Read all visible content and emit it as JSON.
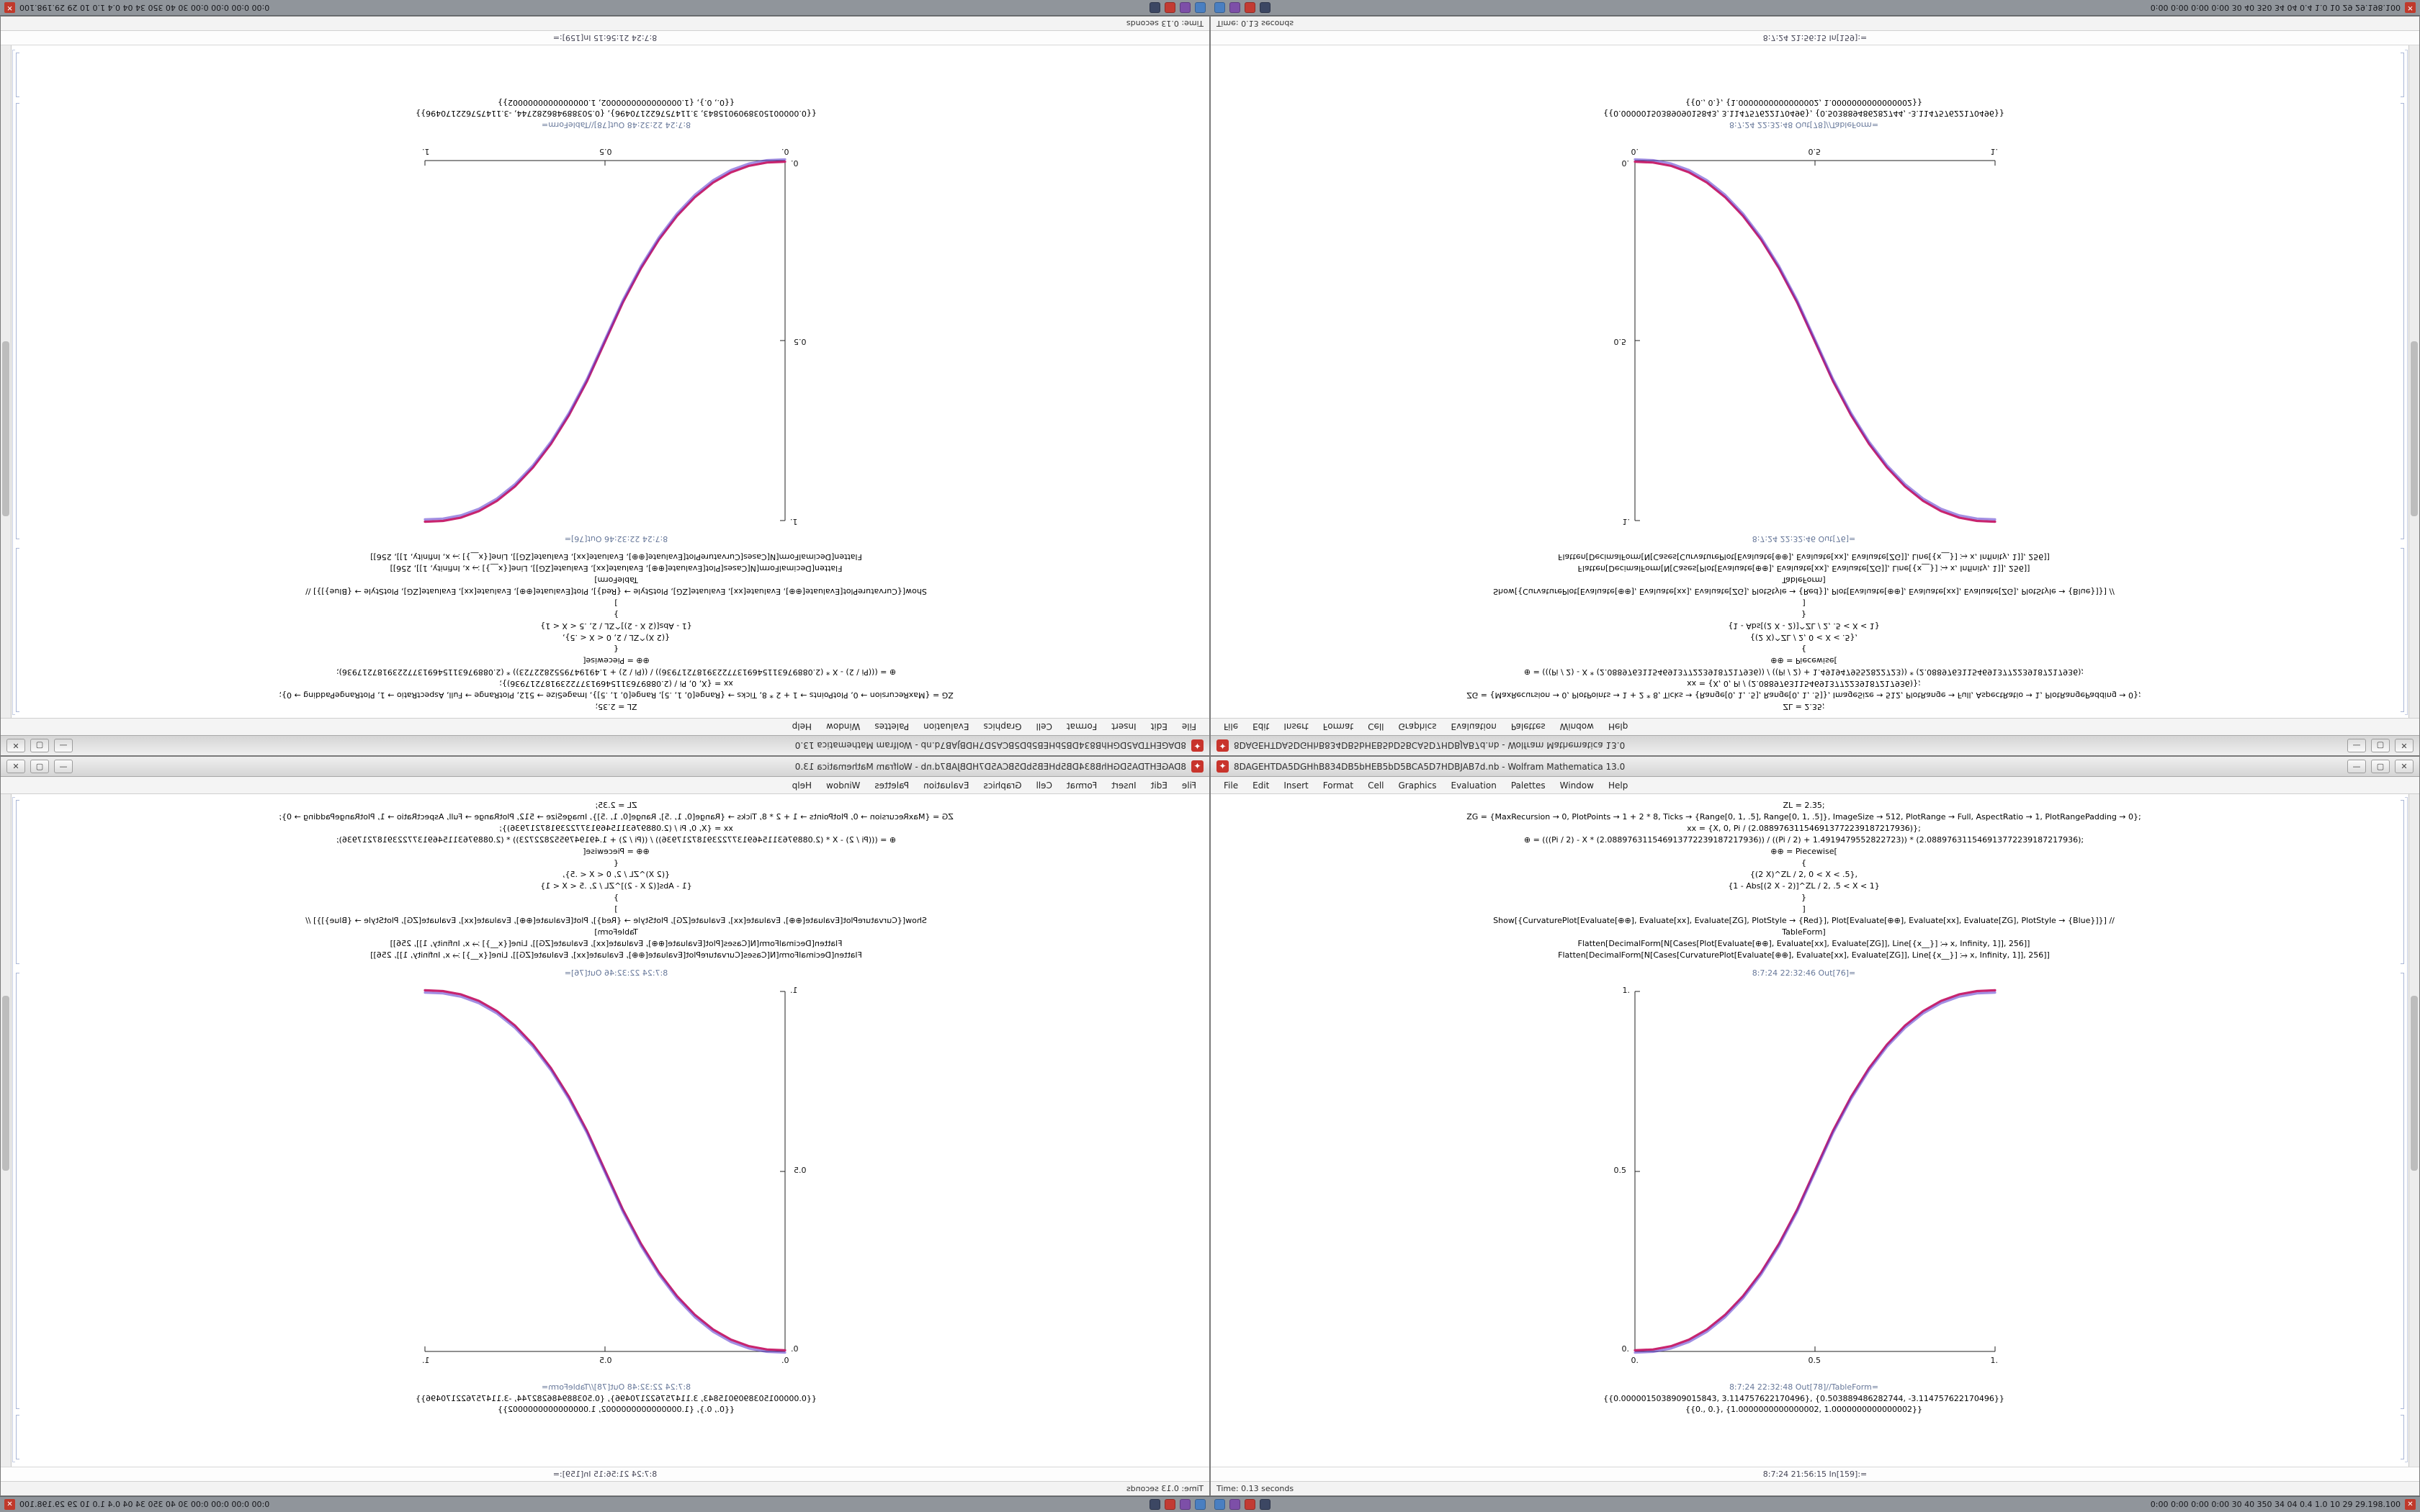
{
  "window": {
    "app_icon_glyph": "✦",
    "title": "8DAGEHTDA5DGHhB834DB5bHEB5bD5BCA5D7HDBJAB7d.nb - Wolfram Mathematica 13.0",
    "controls": {
      "minimize": "—",
      "maximize": "▢",
      "close": "✕"
    },
    "menu": [
      "File",
      "Edit",
      "Insert",
      "Format",
      "Cell",
      "Graphics",
      "Evaluation",
      "Palettes",
      "Window",
      "Help"
    ]
  },
  "notebook": {
    "code_lines": [
      "ZL = 2.35;",
      "ZG = {MaxRecursion → 0, PlotPoints → 1 + 2 * 8, Ticks → {Range[0, 1, .5], Range[0, 1, .5]}, ImageSize → 512, PlotRange → Full, AspectRatio → 1, PlotRangePadding → 0};",
      "xx = {X, 0, Pi / (2.088976311546913772239187217936)};",
      "⊕ = (((Pi / 2) - X * (2.088976311546913772239187217936)) / ((Pi / 2) + 1.4919479552822723)) * (2.088976311546913772239187217936);",
      "⊕⊕ = Piecewise[",
      "{",
      "{(2 X)^ZL / 2, 0 < X < .5},",
      "{1 - Abs[(2 X - 2)]^ZL / 2, .5 < X < 1}",
      "}",
      "]",
      "Show[{CurvaturePlot[Evaluate[⊕⊕], Evaluate[xx], Evaluate[ZG], PlotStyle → {Red}], Plot[Evaluate[⊕⊕], Evaluate[xx], Evaluate[ZG], PlotStyle → {Blue}]}] //",
      "TableForm]",
      "Flatten[DecimalForm[N[Cases[Plot[Evaluate[⊕⊕], Evaluate[xx], Evaluate[ZG]], Line[{x__}] ⧴ x, Infinity, 1]], 256]]",
      "Flatten[DecimalForm[N[Cases[CurvaturePlot[Evaluate[⊕⊕], Evaluate[xx], Evaluate[ZG]], Line[{x__}] ⧴ x, Infinity, 1]], 256]]"
    ],
    "out_plot_label": "8:7:24 22:32:46 Out[76]=",
    "out_table_label": "8:7:24 22:32:48 Out[78]//TableForm=",
    "out_values": [
      "{{0.0000015038909015843, 3.114757622170496}, {0.503889486282744, -3.114757622170496}}",
      "{{0., 0.}, {1.0000000000000002, 1.0000000000000002}}"
    ],
    "footer_in_label": "8:7:24 21:56:15 In[159]:=",
    "status_time": "Time: 0.13 seconds"
  },
  "plot": {
    "type": "line",
    "x_tick_labels": [
      "0.",
      "0.5",
      "1."
    ],
    "y_tick_labels": [
      "0.",
      "0.5",
      "1."
    ],
    "xlim": [
      0,
      1
    ],
    "ylim": [
      0,
      1
    ],
    "series": [
      {
        "name": "CurvaturePlot-Red",
        "color": "#c8246e"
      },
      {
        "name": "Plot-Blue",
        "color": "#5533cc"
      }
    ],
    "points": [
      [
        0,
        0
      ],
      [
        0.05,
        0.0022
      ],
      [
        0.1,
        0.0114
      ],
      [
        0.15,
        0.0295
      ],
      [
        0.2,
        0.058
      ],
      [
        0.25,
        0.0981
      ],
      [
        0.3,
        0.1505
      ],
      [
        0.35,
        0.2162
      ],
      [
        0.4,
        0.296
      ],
      [
        0.45,
        0.3903
      ],
      [
        0.5,
        0.5
      ],
      [
        0.55,
        0.6097
      ],
      [
        0.6,
        0.704
      ],
      [
        0.65,
        0.7838
      ],
      [
        0.7,
        0.8495
      ],
      [
        0.75,
        0.9019
      ],
      [
        0.8,
        0.942
      ],
      [
        0.85,
        0.9705
      ],
      [
        0.9,
        0.9886
      ],
      [
        0.95,
        0.9978
      ],
      [
        1,
        1
      ]
    ]
  },
  "taskbar": {
    "icons": [
      {
        "name": "taskbar-app-1",
        "color": "#4a7fc1"
      },
      {
        "name": "taskbar-app-2",
        "color": "#7d4fa8"
      },
      {
        "name": "taskbar-app-3",
        "color": "#c23b33"
      },
      {
        "name": "taskbar-app-4",
        "color": "#3c4763"
      }
    ],
    "status": "0:00 0:00 0:00 0:00  30 40 350 34 04  0.4 1.0 10 29  29.198.100",
    "close_glyph": "✕"
  }
}
